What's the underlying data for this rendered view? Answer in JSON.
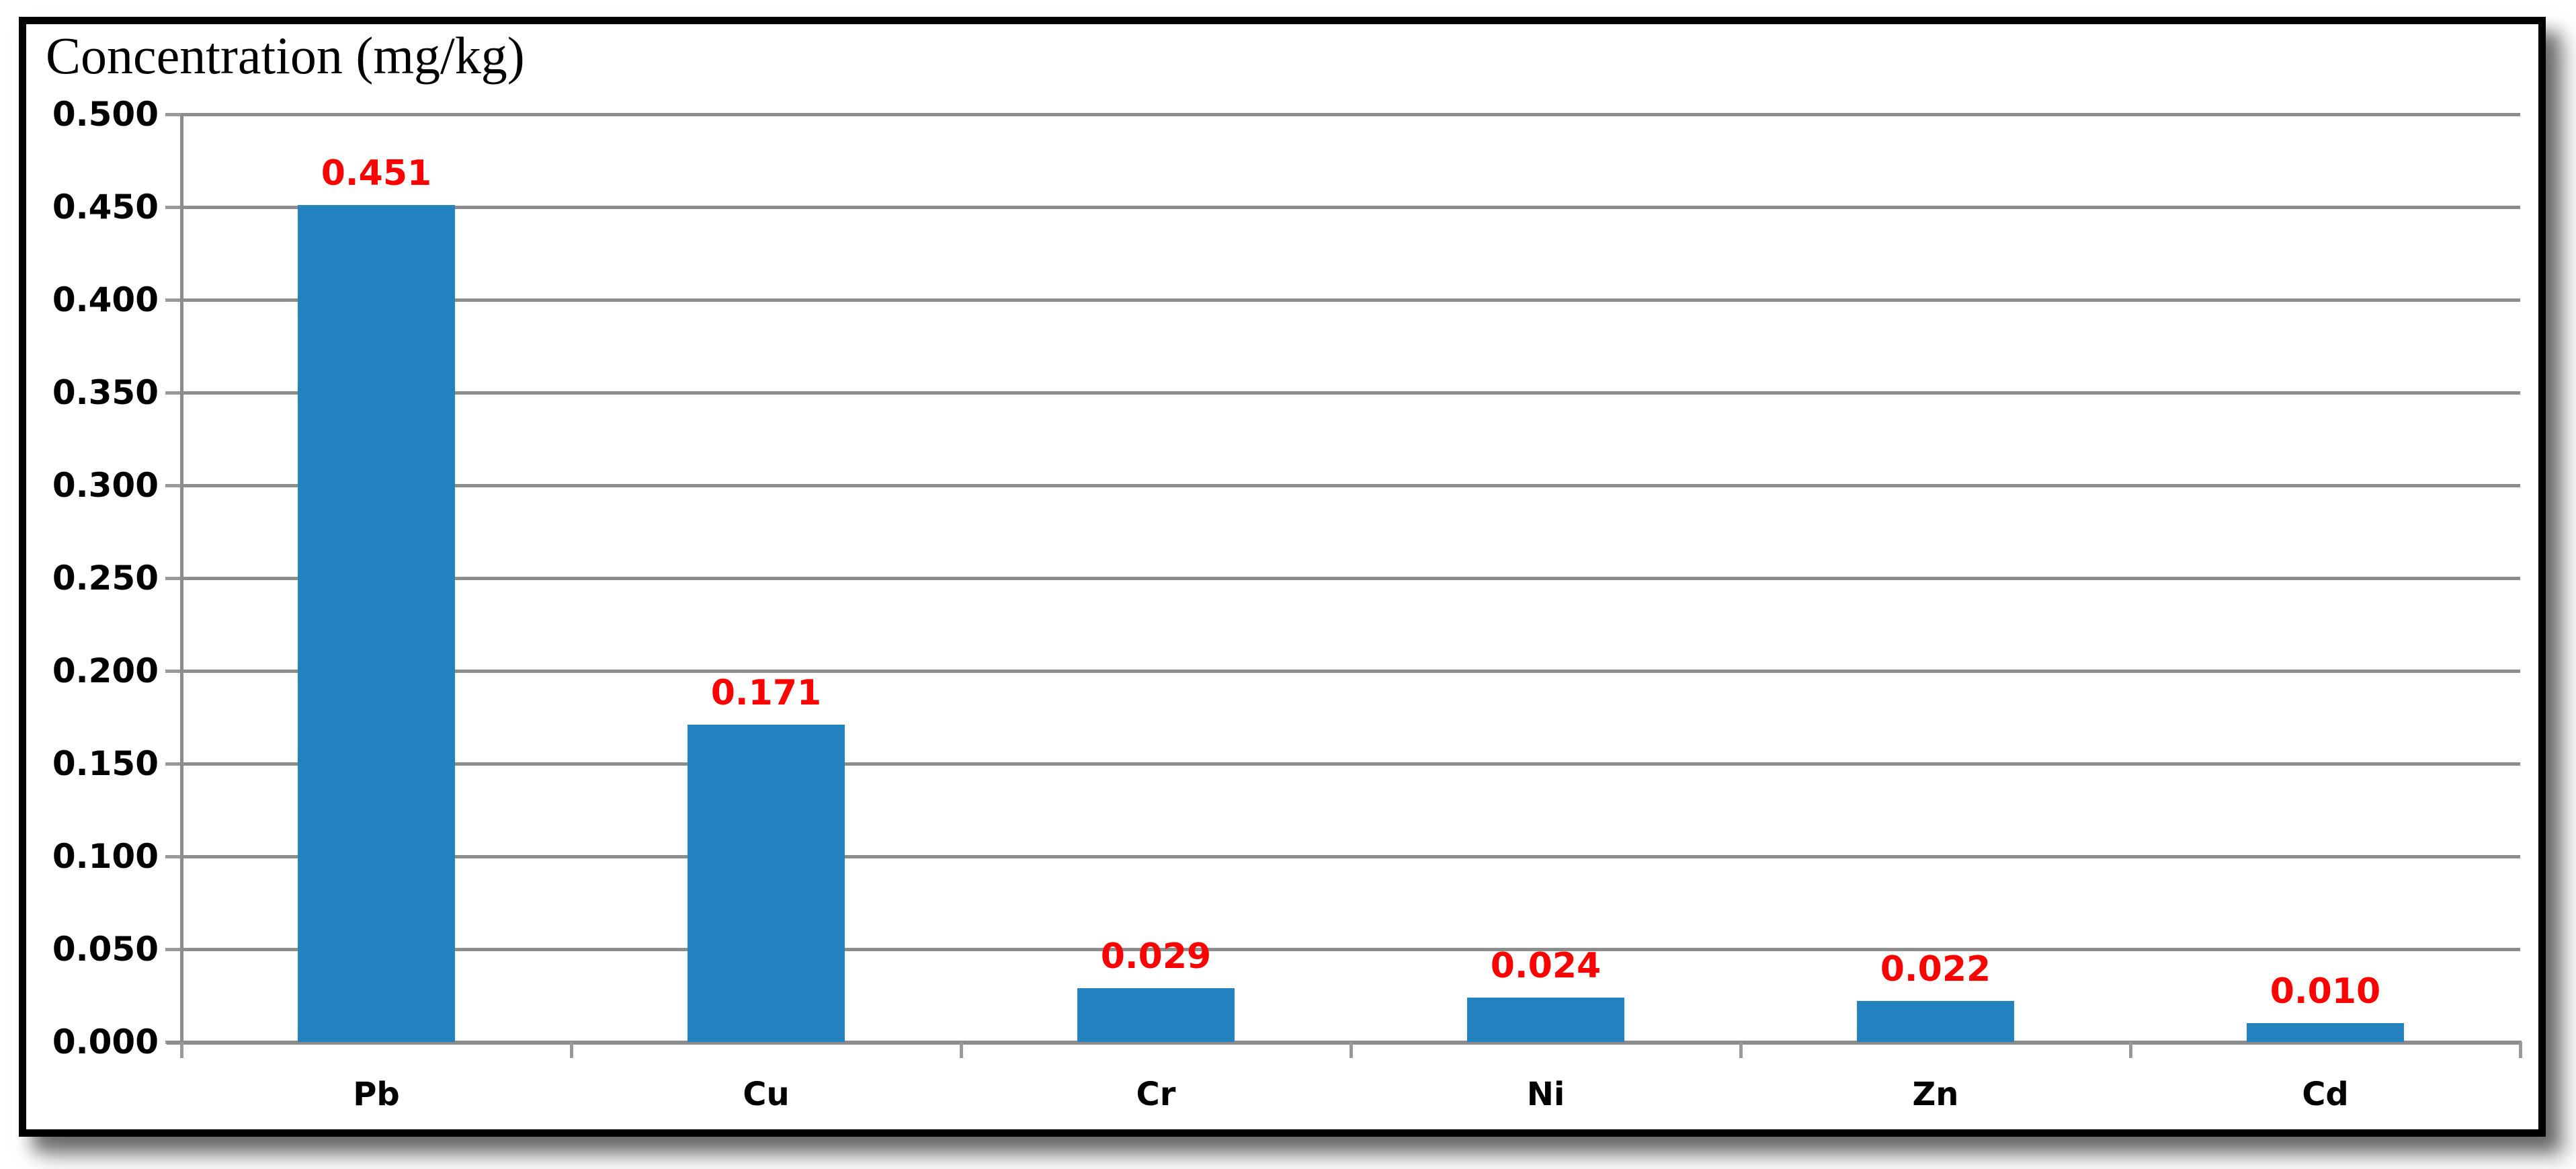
{
  "title": "Concentration (mg/kg)",
  "colors": {
    "bar": "#2482C1",
    "gridline": "#8C8C8C",
    "axis": "#8C8C8C",
    "tick": "#999999",
    "data_label": "#FF0000",
    "text": "#000000",
    "border": "#000000",
    "background": "#FFFFFF"
  },
  "chart_data": {
    "type": "bar",
    "title": "Concentration (mg/kg)",
    "categories": [
      "Pb",
      "Cu",
      "Cr",
      "Ni",
      "Zn",
      "Cd"
    ],
    "values": [
      0.451,
      0.171,
      0.029,
      0.024,
      0.022,
      0.01
    ],
    "data_labels": [
      "0.451",
      "0.171",
      "0.029",
      "0.024",
      "0.022",
      "0.010"
    ],
    "xlabel": "",
    "ylabel": "Concentration (mg/kg)",
    "ylim": [
      0.0,
      0.5
    ],
    "ytick_step": 0.05,
    "ytick_labels": [
      "0.000",
      "0.050",
      "0.100",
      "0.150",
      "0.200",
      "0.250",
      "0.300",
      "0.350",
      "0.400",
      "0.450",
      "0.500"
    ],
    "grid": true,
    "legend": false,
    "data_label_position": "above-bar",
    "data_label_color": "#FF0000",
    "bar_color": "#2482C1"
  }
}
